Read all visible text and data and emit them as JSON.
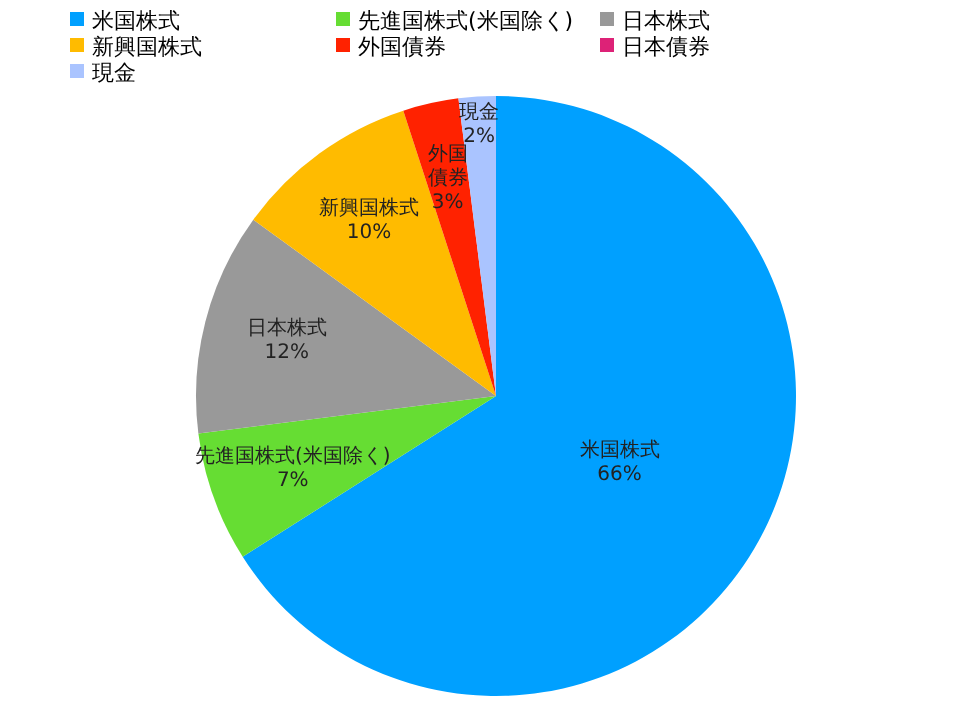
{
  "chart_data": {
    "type": "pie",
    "categories": [
      "米国株式",
      "先進国株式(米国除く)",
      "日本株式",
      "新興国株式",
      "外国債券",
      "日本債券",
      "現金"
    ],
    "values": [
      66,
      7,
      12,
      10,
      3,
      0,
      2
    ],
    "colors": [
      "#00a0ff",
      "#66dd33",
      "#999999",
      "#ffbb00",
      "#ff2200",
      "#dd2277",
      "#aac4ff"
    ],
    "value_labels": [
      "66%",
      "7%",
      "12%",
      "10%",
      "3%",
      null,
      "2%"
    ],
    "legend": "top"
  }
}
